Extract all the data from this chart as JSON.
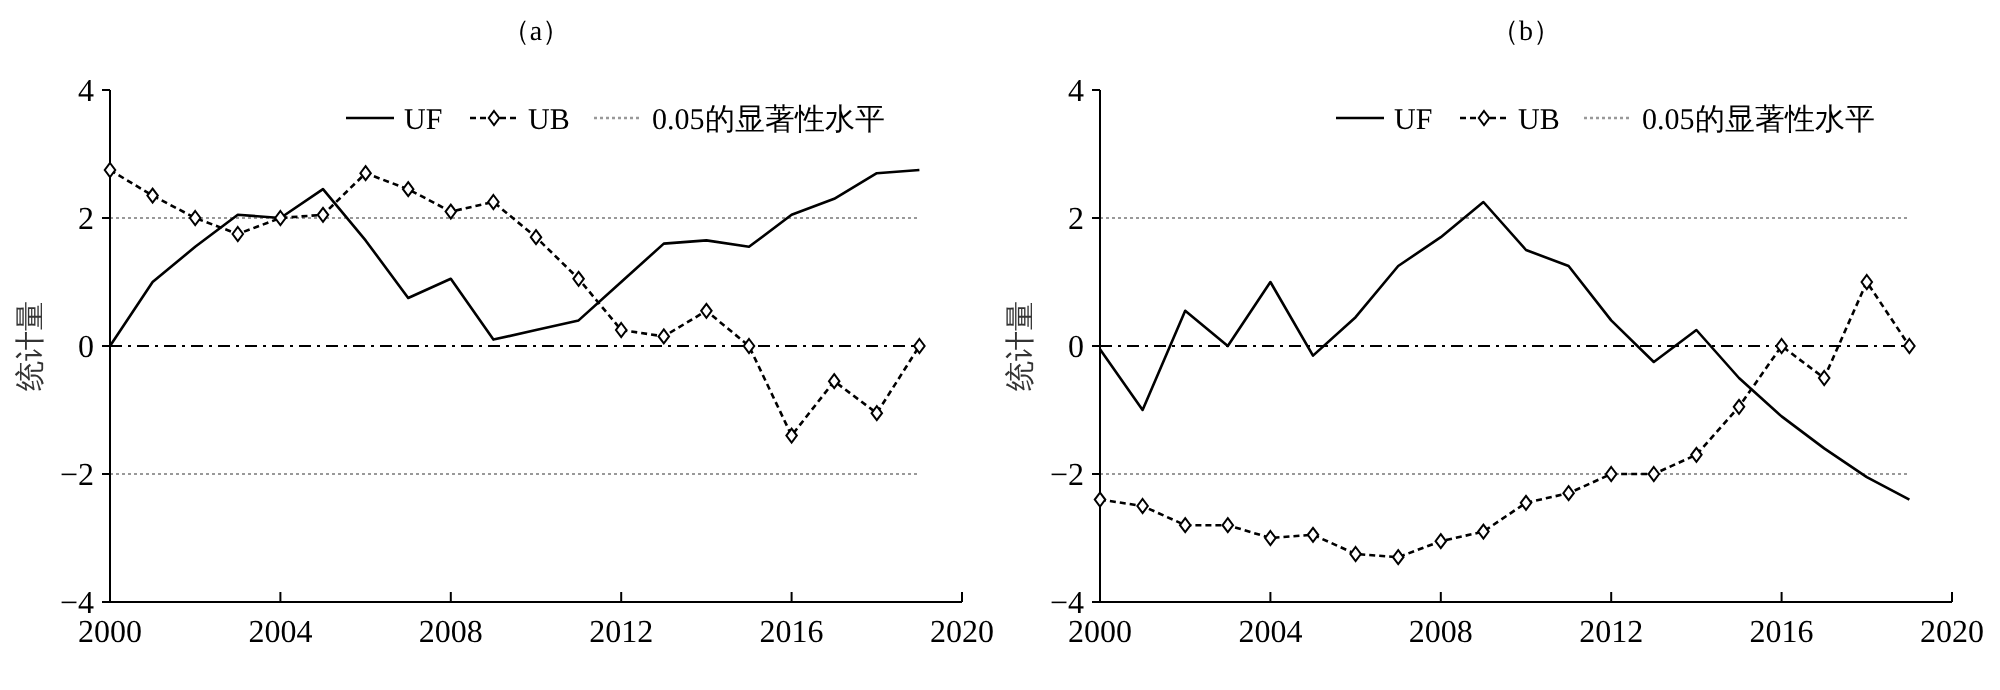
{
  "chart_data": [
    {
      "type": "line",
      "title": "（a）",
      "ylabel": "统计量",
      "x": [
        2000,
        2001,
        2002,
        2003,
        2004,
        2005,
        2006,
        2007,
        2008,
        2009,
        2010,
        2011,
        2012,
        2013,
        2014,
        2015,
        2016,
        2017,
        2018,
        2019
      ],
      "xlim": [
        2000,
        2020
      ],
      "xticks": [
        2000,
        2004,
        2008,
        2012,
        2016,
        2020
      ],
      "ylim": [
        -4,
        4
      ],
      "yticks": [
        -4,
        -2,
        0,
        2,
        4
      ],
      "legend": "top right",
      "series": [
        {
          "name": "UF",
          "color": "#000000",
          "line_style": "solid",
          "marker": "none",
          "values": [
            0,
            1.0,
            1.55,
            2.05,
            2.0,
            2.45,
            1.65,
            0.75,
            1.05,
            0.1,
            0.25,
            0.4,
            1.0,
            1.6,
            1.65,
            1.55,
            2.05,
            2.3,
            2.7,
            2.75
          ]
        },
        {
          "name": "UB",
          "color": "#000000",
          "line_style": "dashed",
          "marker": "diamond",
          "values": [
            2.75,
            2.35,
            2.0,
            1.75,
            2.0,
            2.05,
            2.7,
            2.45,
            2.1,
            2.25,
            1.7,
            1.05,
            0.25,
            0.15,
            0.55,
            0,
            -1.4,
            -0.55,
            -1.05,
            0
          ]
        }
      ],
      "ref_lines": [
        {
          "axis": "y",
          "value": 2,
          "label": "0.05的显著性水平",
          "color": "#999999",
          "line_style": "dotted"
        },
        {
          "axis": "y",
          "value": -2,
          "label": null,
          "color": "#999999",
          "line_style": "dotted"
        },
        {
          "axis": "y",
          "value": 0,
          "label": null,
          "color": "#000000",
          "line_style": "dashed"
        }
      ]
    },
    {
      "type": "line",
      "title": "（b）",
      "ylabel": "统计量",
      "x": [
        2000,
        2001,
        2002,
        2003,
        2004,
        2005,
        2006,
        2007,
        2008,
        2009,
        2010,
        2011,
        2012,
        2013,
        2014,
        2015,
        2016,
        2017,
        2018,
        2019
      ],
      "xlim": [
        2000,
        2020
      ],
      "xticks": [
        2000,
        2004,
        2008,
        2012,
        2016,
        2020
      ],
      "ylim": [
        -4,
        4
      ],
      "yticks": [
        -4,
        -2,
        0,
        2,
        4
      ],
      "legend": "top right",
      "series": [
        {
          "name": "UF",
          "color": "#000000",
          "line_style": "solid",
          "marker": "none",
          "values": [
            -0.05,
            -1.0,
            0.55,
            0.0,
            1.0,
            -0.15,
            0.45,
            1.25,
            1.7,
            2.25,
            1.5,
            1.25,
            0.4,
            -0.25,
            0.25,
            -0.5,
            -1.1,
            -1.6,
            -2.05,
            -2.4
          ]
        },
        {
          "name": "UB",
          "color": "#000000",
          "line_style": "dashed",
          "marker": "diamond",
          "values": [
            -2.4,
            -2.5,
            -2.8,
            -2.8,
            -3.0,
            -2.95,
            -3.25,
            -3.3,
            -3.05,
            -2.9,
            -2.45,
            -2.3,
            -2.0,
            -2.0,
            -1.7,
            -0.95,
            0,
            -0.5,
            1.0,
            0
          ]
        }
      ],
      "ref_lines": [
        {
          "axis": "y",
          "value": 2,
          "label": "0.05的显著性水平",
          "color": "#999999",
          "line_style": "dotted"
        },
        {
          "axis": "y",
          "value": -2,
          "label": null,
          "color": "#999999",
          "line_style": "dotted"
        },
        {
          "axis": "y",
          "value": 0,
          "label": null,
          "color": "#000000",
          "line_style": "dashed"
        }
      ]
    }
  ]
}
